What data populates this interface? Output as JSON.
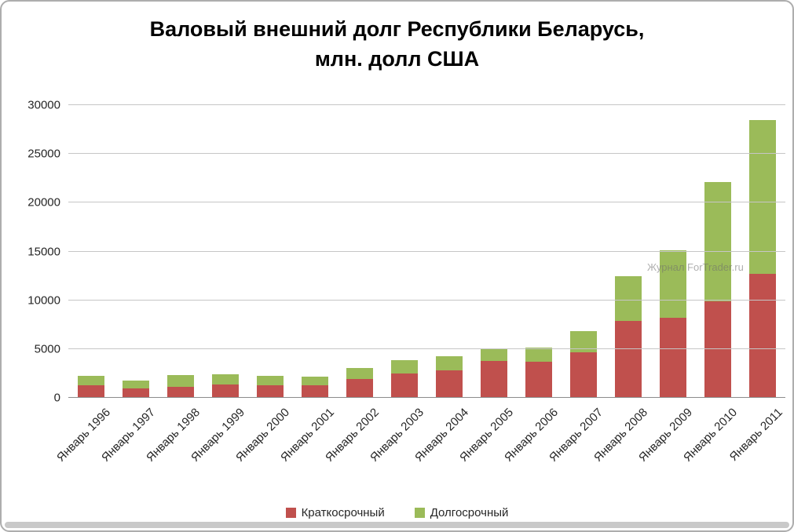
{
  "chart_data": {
    "type": "bar",
    "stacked": true,
    "title": "Валовый внешний долг Республики Беларусь, млн. долл США",
    "title_lines": [
      "Валовый внешний долг Республики Беларусь,",
      "млн. долл США"
    ],
    "categories": [
      "Январь 1996",
      "Январь 1997",
      "Январь 1998",
      "Январь 1999",
      "Январь 2000",
      "Январь 2001",
      "Январь 2002",
      "Январь 2003",
      "Январь 2004",
      "Январь 2005",
      "Январь 2006",
      "Январь 2007",
      "Январь 2008",
      "Январь 2009",
      "Январь 2010",
      "Январь 2011"
    ],
    "series": [
      {
        "name": "Краткосрочный",
        "color": "#c0504d",
        "values": [
          1300,
          950,
          1100,
          1400,
          1300,
          1250,
          1900,
          2500,
          2800,
          3800,
          3700,
          4700,
          7900,
          8200,
          9900,
          12700
        ]
      },
      {
        "name": "Долгосрочный",
        "color": "#9bbb59",
        "values": [
          950,
          800,
          1200,
          1000,
          950,
          900,
          1150,
          1400,
          1450,
          1250,
          1450,
          2150,
          4600,
          6900,
          12200,
          15800
        ]
      }
    ],
    "xlabel": "",
    "ylabel": "",
    "ylim": [
      0,
      30000
    ],
    "ytick_step": 5000,
    "grid": true,
    "legend_position": "bottom",
    "watermark": "Журнал ForTrader.ru"
  }
}
